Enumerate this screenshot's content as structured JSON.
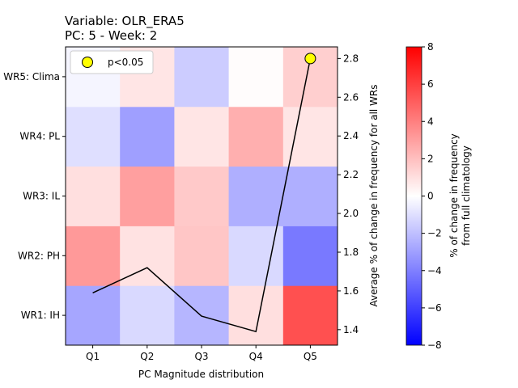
{
  "chart_data": {
    "type": "heatmap",
    "title_line1": "Variable: OLR_ERA5",
    "title_line2": "PC: 5 - Week: 2",
    "xlabel": "PC Magnitude distribution",
    "x_categories": [
      "Q1",
      "Q2",
      "Q3",
      "Q4",
      "Q5"
    ],
    "y_categories": [
      "WR1: IH",
      "WR2: PH",
      "WR3: IL",
      "WR4: PL",
      "WR5: Clima"
    ],
    "heatmap_values": [
      [
        -2.8,
        -1.2,
        -2.3,
        1.0,
        5.5
      ],
      [
        3.2,
        0.9,
        1.8,
        -1.2,
        -4.2
      ],
      [
        1.0,
        3.0,
        1.7,
        -2.5,
        -2.5
      ],
      [
        -1.0,
        -3.0,
        0.8,
        2.5,
        0.8
      ],
      [
        -0.3,
        0.8,
        -1.6,
        0.1,
        1.5
      ]
    ],
    "significant_cells": [
      {
        "x": "Q5",
        "y": "WR5: Clima"
      }
    ],
    "colorbar": {
      "label_line1": "% of change in frequency",
      "label_line2": "from full climatology",
      "range": [
        -8,
        8
      ],
      "ticks": [
        -8,
        -6,
        -4,
        -2,
        0,
        2,
        4,
        6,
        8
      ],
      "tick_labels": [
        "−8",
        "−6",
        "−4",
        "−2",
        "0",
        "2",
        "4",
        "6",
        "8"
      ],
      "colormap": [
        "#0000ff",
        "#ffffff",
        "#ff0000"
      ]
    },
    "line_series": {
      "name": "Average % of change in frequency for all WRs",
      "ylabel": "Average % of change in frequency for all WRs",
      "values": [
        1.59,
        1.72,
        1.47,
        1.39,
        2.8
      ],
      "ylim": [
        1.32,
        2.86
      ],
      "ticks": [
        1.4,
        1.6,
        1.8,
        2.0,
        2.2,
        2.4,
        2.6,
        2.8
      ],
      "tick_labels": [
        "1.4",
        "1.6",
        "1.8",
        "2.0",
        "2.2",
        "2.4",
        "2.6",
        "2.8"
      ],
      "color": "#000000"
    },
    "legend": {
      "label": "p<0.05",
      "marker_color": "#ffff00",
      "location": "top-left"
    }
  }
}
